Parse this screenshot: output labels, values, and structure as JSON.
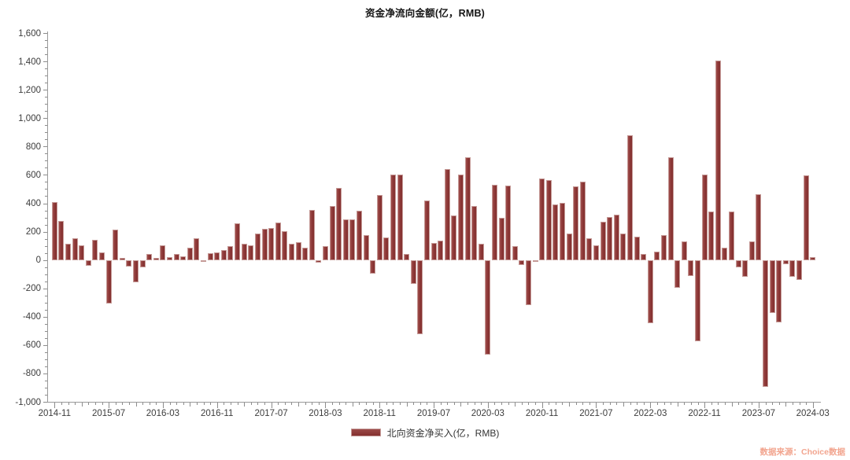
{
  "title": "资金净流向金额(亿，RMB)",
  "legend": {
    "label": "北向资金净买入(亿，RMB)"
  },
  "source_note": "数据来源：Choice数据",
  "colors": {
    "bar": "#8b3635",
    "bar_edge": "#c59a97",
    "axis": "#999999",
    "tick_label": "#3c3c3c",
    "title": "#141414",
    "source_note": "#f2a58f",
    "background": "#ffffff"
  },
  "chart_data": {
    "type": "bar",
    "title": "资金净流向金额(亿，RMB)",
    "series_name": "北向资金净买入(亿，RMB)",
    "unit": "亿元 RMB",
    "grid": false,
    "legend_position": "bottom",
    "ylim": [
      -1000,
      1600
    ],
    "y_tick_step": 200,
    "y_minor_tick_step": 50,
    "x_label_every": 8,
    "x_tick_labels": [
      "2014-11",
      "2015-07",
      "2016-03",
      "2016-11",
      "2017-07",
      "2018-03",
      "2018-11",
      "2019-07",
      "2020-03",
      "2020-11",
      "2021-07",
      "2022-03",
      "2022-11",
      "2023-07",
      "2024-03"
    ],
    "x": [
      "2014-11",
      "2014-12",
      "2015-01",
      "2015-02",
      "2015-03",
      "2015-04",
      "2015-05",
      "2015-06",
      "2015-07",
      "2015-08",
      "2015-09",
      "2015-10",
      "2015-11",
      "2015-12",
      "2016-01",
      "2016-02",
      "2016-03",
      "2016-04",
      "2016-05",
      "2016-06",
      "2016-07",
      "2016-08",
      "2016-09",
      "2016-10",
      "2016-11",
      "2016-12",
      "2017-01",
      "2017-02",
      "2017-03",
      "2017-04",
      "2017-05",
      "2017-06",
      "2017-07",
      "2017-08",
      "2017-09",
      "2017-10",
      "2017-11",
      "2017-12",
      "2018-01",
      "2018-02",
      "2018-03",
      "2018-04",
      "2018-05",
      "2018-06",
      "2018-07",
      "2018-08",
      "2018-09",
      "2018-10",
      "2018-11",
      "2018-12",
      "2019-01",
      "2019-02",
      "2019-03",
      "2019-04",
      "2019-05",
      "2019-06",
      "2019-07",
      "2019-08",
      "2019-09",
      "2019-10",
      "2019-11",
      "2019-12",
      "2020-01",
      "2020-02",
      "2020-03",
      "2020-04",
      "2020-05",
      "2020-06",
      "2020-07",
      "2020-08",
      "2020-09",
      "2020-10",
      "2020-11",
      "2020-12",
      "2021-01",
      "2021-02",
      "2021-03",
      "2021-04",
      "2021-05",
      "2021-06",
      "2021-07",
      "2021-08",
      "2021-09",
      "2021-10",
      "2021-11",
      "2021-12",
      "2022-01",
      "2022-02",
      "2022-03",
      "2022-04",
      "2022-05",
      "2022-06",
      "2022-07",
      "2022-08",
      "2022-09",
      "2022-10",
      "2022-11",
      "2022-12",
      "2023-01",
      "2023-02",
      "2023-03",
      "2023-04",
      "2023-05",
      "2023-06",
      "2023-07",
      "2023-08",
      "2023-09",
      "2023-10",
      "2023-11",
      "2023-12",
      "2024-01",
      "2024-02",
      "2024-03"
    ],
    "values": [
      409,
      278,
      114,
      156,
      101,
      -39,
      142,
      55,
      -309,
      212,
      17,
      -46,
      -157,
      -52,
      40,
      13,
      105,
      20,
      40,
      24,
      88,
      155,
      -9,
      46,
      55,
      68,
      96,
      256,
      114,
      101,
      185,
      219,
      225,
      267,
      206,
      114,
      127,
      87,
      354,
      -20,
      99,
      381,
      507,
      284,
      284,
      348,
      173,
      -98,
      460,
      160,
      600,
      600,
      44,
      -171,
      -525,
      421,
      120,
      134,
      642,
      316,
      601,
      723,
      381,
      114,
      -670,
      528,
      298,
      524,
      100,
      -33,
      -318,
      -15,
      574,
      565,
      394,
      405,
      184,
      522,
      550,
      151,
      105,
      270,
      304,
      322,
      184,
      878,
      164,
      40,
      -447,
      59,
      173,
      725,
      -195,
      129,
      -112,
      -572,
      601,
      344,
      1408,
      86,
      344,
      -55,
      -121,
      129,
      464,
      -894,
      -373,
      -443,
      -30,
      -121,
      -143,
      596,
      22
    ]
  }
}
